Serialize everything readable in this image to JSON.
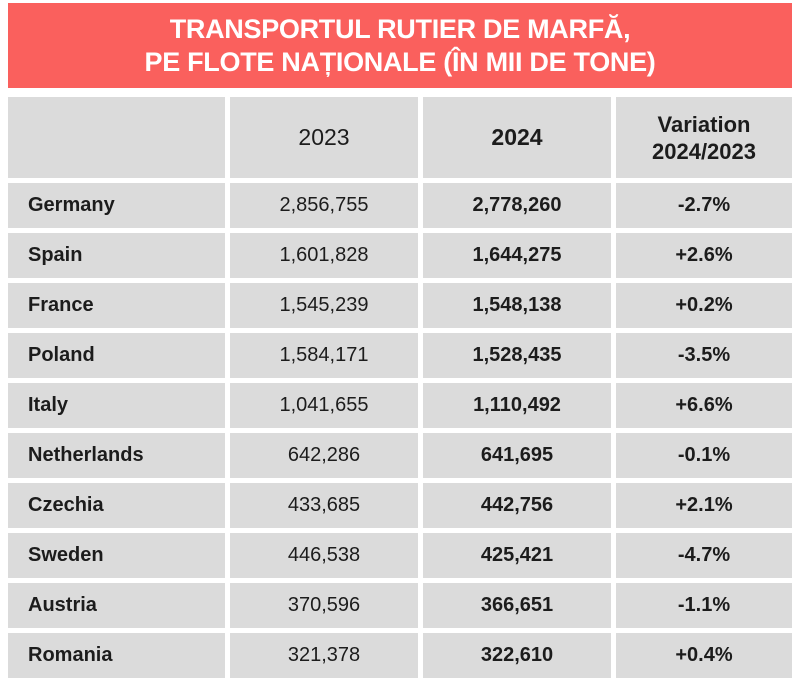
{
  "title": {
    "line1": "TRANSPORTUL RUTIER DE MARFĂ,",
    "line2": "PE FLOTE NAȚIONALE (ÎN MII DE TONE)"
  },
  "chart_data": {
    "type": "table",
    "columns": [
      "",
      "2023",
      "2024",
      "Variation\n2024/2023"
    ],
    "rows": [
      {
        "country": "Germany",
        "y2023": "2,856,755",
        "y2024": "2,778,260",
        "variation": "-2.7%"
      },
      {
        "country": "Spain",
        "y2023": "1,601,828",
        "y2024": "1,644,275",
        "variation": "+2.6%"
      },
      {
        "country": "France",
        "y2023": "1,545,239",
        "y2024": "1,548,138",
        "variation": "+0.2%"
      },
      {
        "country": "Poland",
        "y2023": "1,584,171",
        "y2024": "1,528,435",
        "variation": "-3.5%"
      },
      {
        "country": "Italy",
        "y2023": "1,041,655",
        "y2024": "1,110,492",
        "variation": "+6.6%"
      },
      {
        "country": "Netherlands",
        "y2023": "642,286",
        "y2024": "641,695",
        "variation": "-0.1%"
      },
      {
        "country": "Czechia",
        "y2023": "433,685",
        "y2024": "442,756",
        "variation": "+2.1%"
      },
      {
        "country": "Sweden",
        "y2023": "446,538",
        "y2024": "425,421",
        "variation": "-4.7%"
      },
      {
        "country": "Austria",
        "y2023": "370,596",
        "y2024": "366,651",
        "variation": "-1.1%"
      },
      {
        "country": "Romania",
        "y2023": "321,378",
        "y2024": "322,610",
        "variation": "+0.4%"
      }
    ]
  },
  "colors": {
    "banner_background": "#fa605d",
    "banner_text": "#ffffff",
    "cell_background": "#dbdbdb",
    "table_text": "#1c1c1c",
    "page_background": "#ffffff"
  }
}
